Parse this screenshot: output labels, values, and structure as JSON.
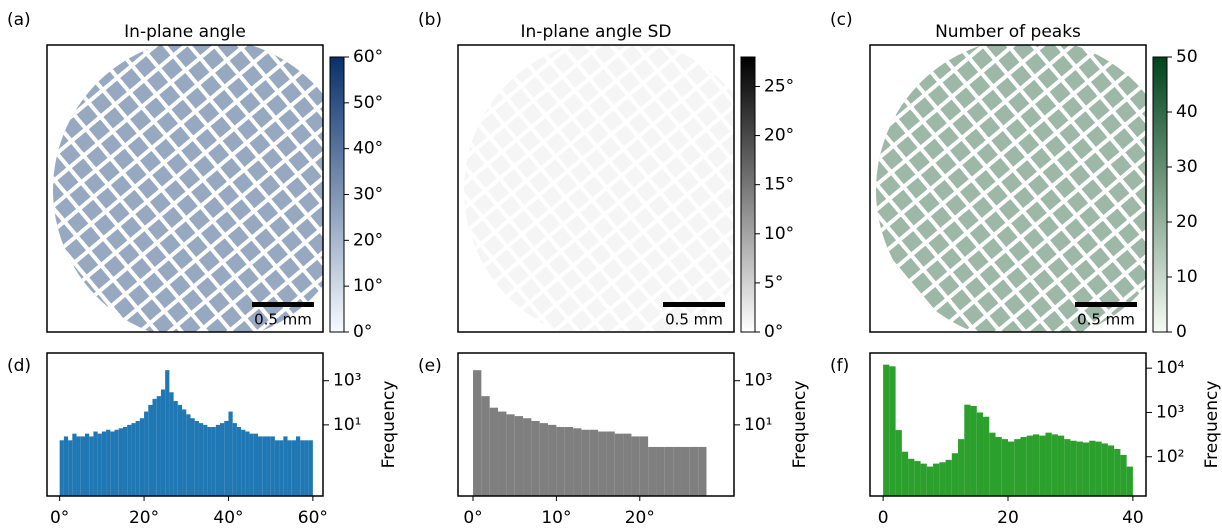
{
  "chart_data": [
    {
      "type": "image",
      "panel": "(a)",
      "title": "In-plane angle",
      "scale_bar": "0.5 mm",
      "colormap": [
        "#f7fbff",
        "#08306b"
      ],
      "clim": [
        0,
        60
      ],
      "cticks": [
        {
          "value": 0,
          "label": "0°"
        },
        {
          "value": 10,
          "label": "10°"
        },
        {
          "value": 20,
          "label": "20°"
        },
        {
          "value": 30,
          "label": "30°"
        },
        {
          "value": 40,
          "label": "40°"
        },
        {
          "value": 50,
          "label": "50°"
        },
        {
          "value": 60,
          "label": "60°"
        }
      ]
    },
    {
      "type": "image",
      "panel": "(b)",
      "title": "In-plane angle SD",
      "scale_bar": "0.5 mm",
      "colormap": [
        "#ffffff",
        "#000000"
      ],
      "clim": [
        0,
        28
      ],
      "cticks": [
        {
          "value": 0,
          "label": "0°"
        },
        {
          "value": 5,
          "label": "5°"
        },
        {
          "value": 10,
          "label": "10°"
        },
        {
          "value": 15,
          "label": "15°"
        },
        {
          "value": 20,
          "label": "20°"
        },
        {
          "value": 25,
          "label": "25°"
        }
      ]
    },
    {
      "type": "image",
      "panel": "(c)",
      "title": "Number of peaks",
      "scale_bar": "0.5 mm",
      "colormap": [
        "#f7fcf5",
        "#00441b"
      ],
      "clim": [
        0,
        50
      ],
      "cticks": [
        0,
        10,
        20,
        30,
        40,
        50
      ]
    },
    {
      "type": "histogram",
      "panel": "(d)",
      "ylabel": "Frequency",
      "color": "#1f77b4",
      "log_scale": true,
      "bins": [
        0,
        1,
        2,
        3,
        4,
        5,
        6,
        7,
        8,
        9,
        10,
        11,
        12,
        13,
        14,
        15,
        16,
        17,
        18,
        19,
        20,
        21,
        22,
        23,
        24,
        25,
        26,
        27,
        28,
        29,
        30,
        31,
        32,
        33,
        34,
        35,
        36,
        37,
        38,
        39,
        40,
        41,
        42,
        43,
        44,
        45,
        46,
        47,
        48,
        49,
        50,
        51,
        52,
        53,
        54,
        55,
        56,
        57,
        58,
        59,
        60
      ],
      "values": [
        2,
        3,
        2,
        4,
        3,
        3,
        4,
        3,
        5,
        4,
        5,
        6,
        5,
        6,
        7,
        8,
        10,
        12,
        15,
        20,
        40,
        80,
        150,
        200,
        400,
        3000,
        300,
        120,
        80,
        50,
        30,
        20,
        15,
        12,
        10,
        8,
        8,
        10,
        12,
        15,
        40,
        12,
        8,
        6,
        5,
        4,
        4,
        3,
        3,
        3,
        3,
        2,
        2,
        3,
        2,
        2,
        3,
        2,
        2,
        2
      ],
      "xlim": [
        -3,
        62.4
      ],
      "xticks": [
        {
          "value": 0,
          "label": "0°"
        },
        {
          "value": 20,
          "label": "20°"
        },
        {
          "value": 40,
          "label": "40°"
        },
        {
          "value": 60,
          "label": "60°"
        }
      ],
      "ylim": [
        0.006,
        18000
      ],
      "yticks": [
        {
          "value": 10,
          "label": "10¹"
        },
        {
          "value": 1000,
          "label": "10³"
        }
      ]
    },
    {
      "type": "histogram",
      "panel": "(e)",
      "ylabel": "Frequency",
      "color": "#7f7f7f",
      "log_scale": true,
      "bins": [
        0,
        1,
        2,
        3,
        4,
        5,
        6,
        7,
        8,
        9,
        10,
        11,
        12,
        13,
        14,
        15,
        16,
        17,
        18,
        19,
        20,
        21,
        22,
        23,
        24,
        25,
        26,
        27,
        28
      ],
      "values": [
        3000,
        200,
        60,
        40,
        30,
        25,
        20,
        15,
        12,
        10,
        8,
        8,
        7,
        6,
        6,
        5,
        5,
        4,
        4,
        3,
        3,
        1,
        1,
        1,
        1,
        1,
        1,
        1
      ],
      "xlim": [
        -1.8,
        31.3
      ],
      "xticks": [
        {
          "value": 0,
          "label": "0°"
        },
        {
          "value": 10,
          "label": "10°"
        },
        {
          "value": 20,
          "label": "20°"
        }
      ],
      "ylim": [
        0.006,
        18000
      ],
      "yticks": [
        {
          "value": 10,
          "label": "10¹"
        },
        {
          "value": 1000,
          "label": "10³"
        }
      ]
    },
    {
      "type": "histogram",
      "panel": "(f)",
      "ylabel": "Frequency",
      "color": "#2ca02c",
      "log_scale": true,
      "bins": [
        0,
        1,
        2,
        3,
        4,
        5,
        6,
        7,
        8,
        9,
        10,
        11,
        12,
        13,
        14,
        15,
        16,
        17,
        18,
        19,
        20,
        21,
        22,
        23,
        24,
        25,
        26,
        27,
        28,
        29,
        30,
        31,
        32,
        33,
        34,
        35,
        36,
        37,
        38,
        39,
        40
      ],
      "values": [
        12000,
        11000,
        400,
        130,
        90,
        80,
        70,
        60,
        70,
        75,
        85,
        120,
        250,
        1500,
        1400,
        1000,
        800,
        350,
        280,
        250,
        220,
        250,
        280,
        300,
        320,
        300,
        350,
        320,
        300,
        250,
        230,
        220,
        210,
        230,
        220,
        200,
        180,
        150,
        110,
        60
      ],
      "xlim": [
        -2.1,
        42.1
      ],
      "xticks": [
        0,
        20,
        40
      ],
      "ylim": [
        13,
        22000
      ],
      "yticks": [
        {
          "value": 100,
          "label": "10²"
        },
        {
          "value": 1000,
          "label": "10³"
        },
        {
          "value": 10000,
          "label": "10⁴"
        }
      ]
    }
  ]
}
